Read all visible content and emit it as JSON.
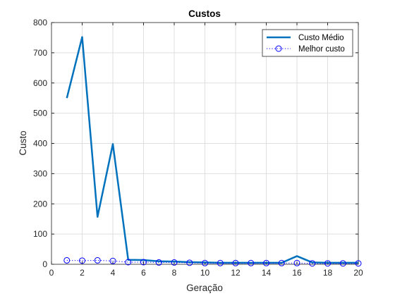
{
  "chart_data": {
    "type": "line",
    "title": "Custos",
    "xlabel": "Geração",
    "ylabel": "Custo",
    "xlim": [
      0,
      20
    ],
    "ylim": [
      0,
      800
    ],
    "xticks": [
      0,
      2,
      4,
      6,
      8,
      10,
      12,
      14,
      16,
      18,
      20
    ],
    "yticks": [
      0,
      100,
      200,
      300,
      400,
      500,
      600,
      700,
      800
    ],
    "grid": true,
    "legend_position": "top-right",
    "x": [
      1,
      2,
      3,
      4,
      5,
      6,
      7,
      8,
      9,
      10,
      11,
      12,
      13,
      14,
      15,
      16,
      17,
      18,
      19,
      20
    ],
    "series": [
      {
        "name": "Custo Médio",
        "style": "solid",
        "color": "#0072bd",
        "values": [
          550,
          752,
          157,
          398,
          15,
          14,
          10,
          9,
          7,
          6,
          5,
          5,
          5,
          5,
          5,
          27,
          6,
          5,
          5,
          5
        ]
      },
      {
        "name": "Melhor custo",
        "style": "dotted-circle-markers",
        "color": "#0000ff",
        "values": [
          13,
          12,
          13,
          11,
          7,
          7,
          6,
          6,
          5,
          4,
          4,
          4,
          4,
          4,
          4,
          4,
          3,
          3,
          3,
          3
        ]
      }
    ]
  }
}
